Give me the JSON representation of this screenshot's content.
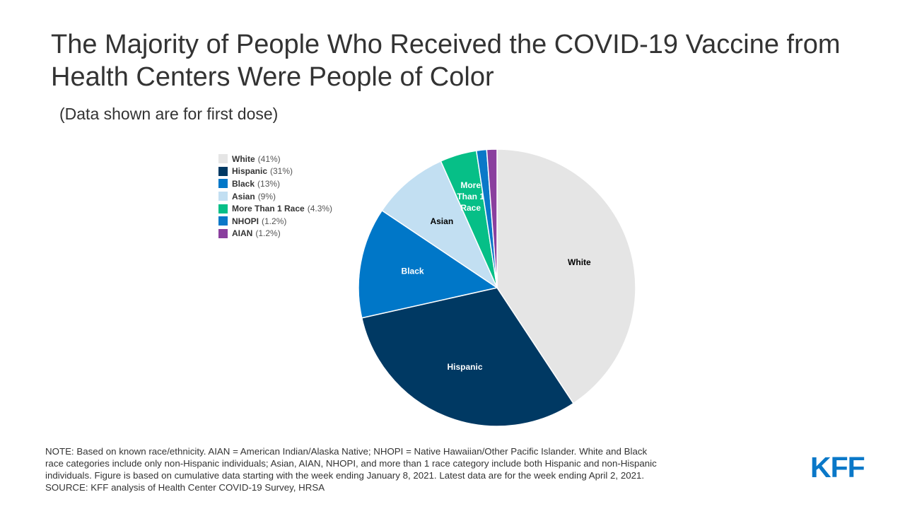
{
  "header": {
    "title": "The Majority of People Who Received the COVID-19 Vaccine from Health Centers Were People of Color",
    "subtitle": "(Data shown are for first dose)"
  },
  "chart_data": {
    "type": "pie",
    "slices": [
      {
        "label": "White",
        "value": 41,
        "legend_pct": "(41%)",
        "color": "#e5e5e5",
        "text_color": "#000000",
        "slice_label": "White"
      },
      {
        "label": "Hispanic",
        "value": 31,
        "legend_pct": "(31%)",
        "color": "#003963",
        "text_color": "#ffffff",
        "slice_label": "Hispanic"
      },
      {
        "label": "Black",
        "value": 13,
        "legend_pct": "(13%)",
        "color": "#0077c8",
        "text_color": "#ffffff",
        "slice_label": "Black"
      },
      {
        "label": "Asian",
        "value": 9,
        "legend_pct": "(9%)",
        "color": "#c2dff2",
        "text_color": "#000000",
        "slice_label": "Asian"
      },
      {
        "label": "More Than 1 Race",
        "value": 4.3,
        "legend_pct": "(4.3%)",
        "color": "#06bf87",
        "text_color": "#ffffff",
        "slice_label": "More Than 1 Race"
      },
      {
        "label": "NHOPI",
        "value": 1.2,
        "legend_pct": "(1.2%)",
        "color": "#0a78c8",
        "text_color": "#ffffff",
        "slice_label": ""
      },
      {
        "label": "AIAN",
        "value": 1.2,
        "legend_pct": "(1.2%)",
        "color": "#8a3f9e",
        "text_color": "#ffffff",
        "slice_label": ""
      }
    ],
    "legend_position": "top-left"
  },
  "footer": {
    "note_lines": [
      "NOTE: Based on known race/ethnicity. AIAN = American Indian/Alaska Native; NHOPI = Native Hawaiian/Other Pacific Islander. White and Black",
      "race categories include only non-Hispanic individuals; Asian, AIAN, NHOPI, and more than 1 race category include both Hispanic and non-Hispanic",
      "individuals. Figure is based on cumulative data starting with the week ending January 8, 2021. Latest data are for the week ending April 2, 2021.",
      "SOURCE: KFF analysis of Health Center COVID-19 Survey, HRSA"
    ],
    "logo_text": "KFF"
  }
}
